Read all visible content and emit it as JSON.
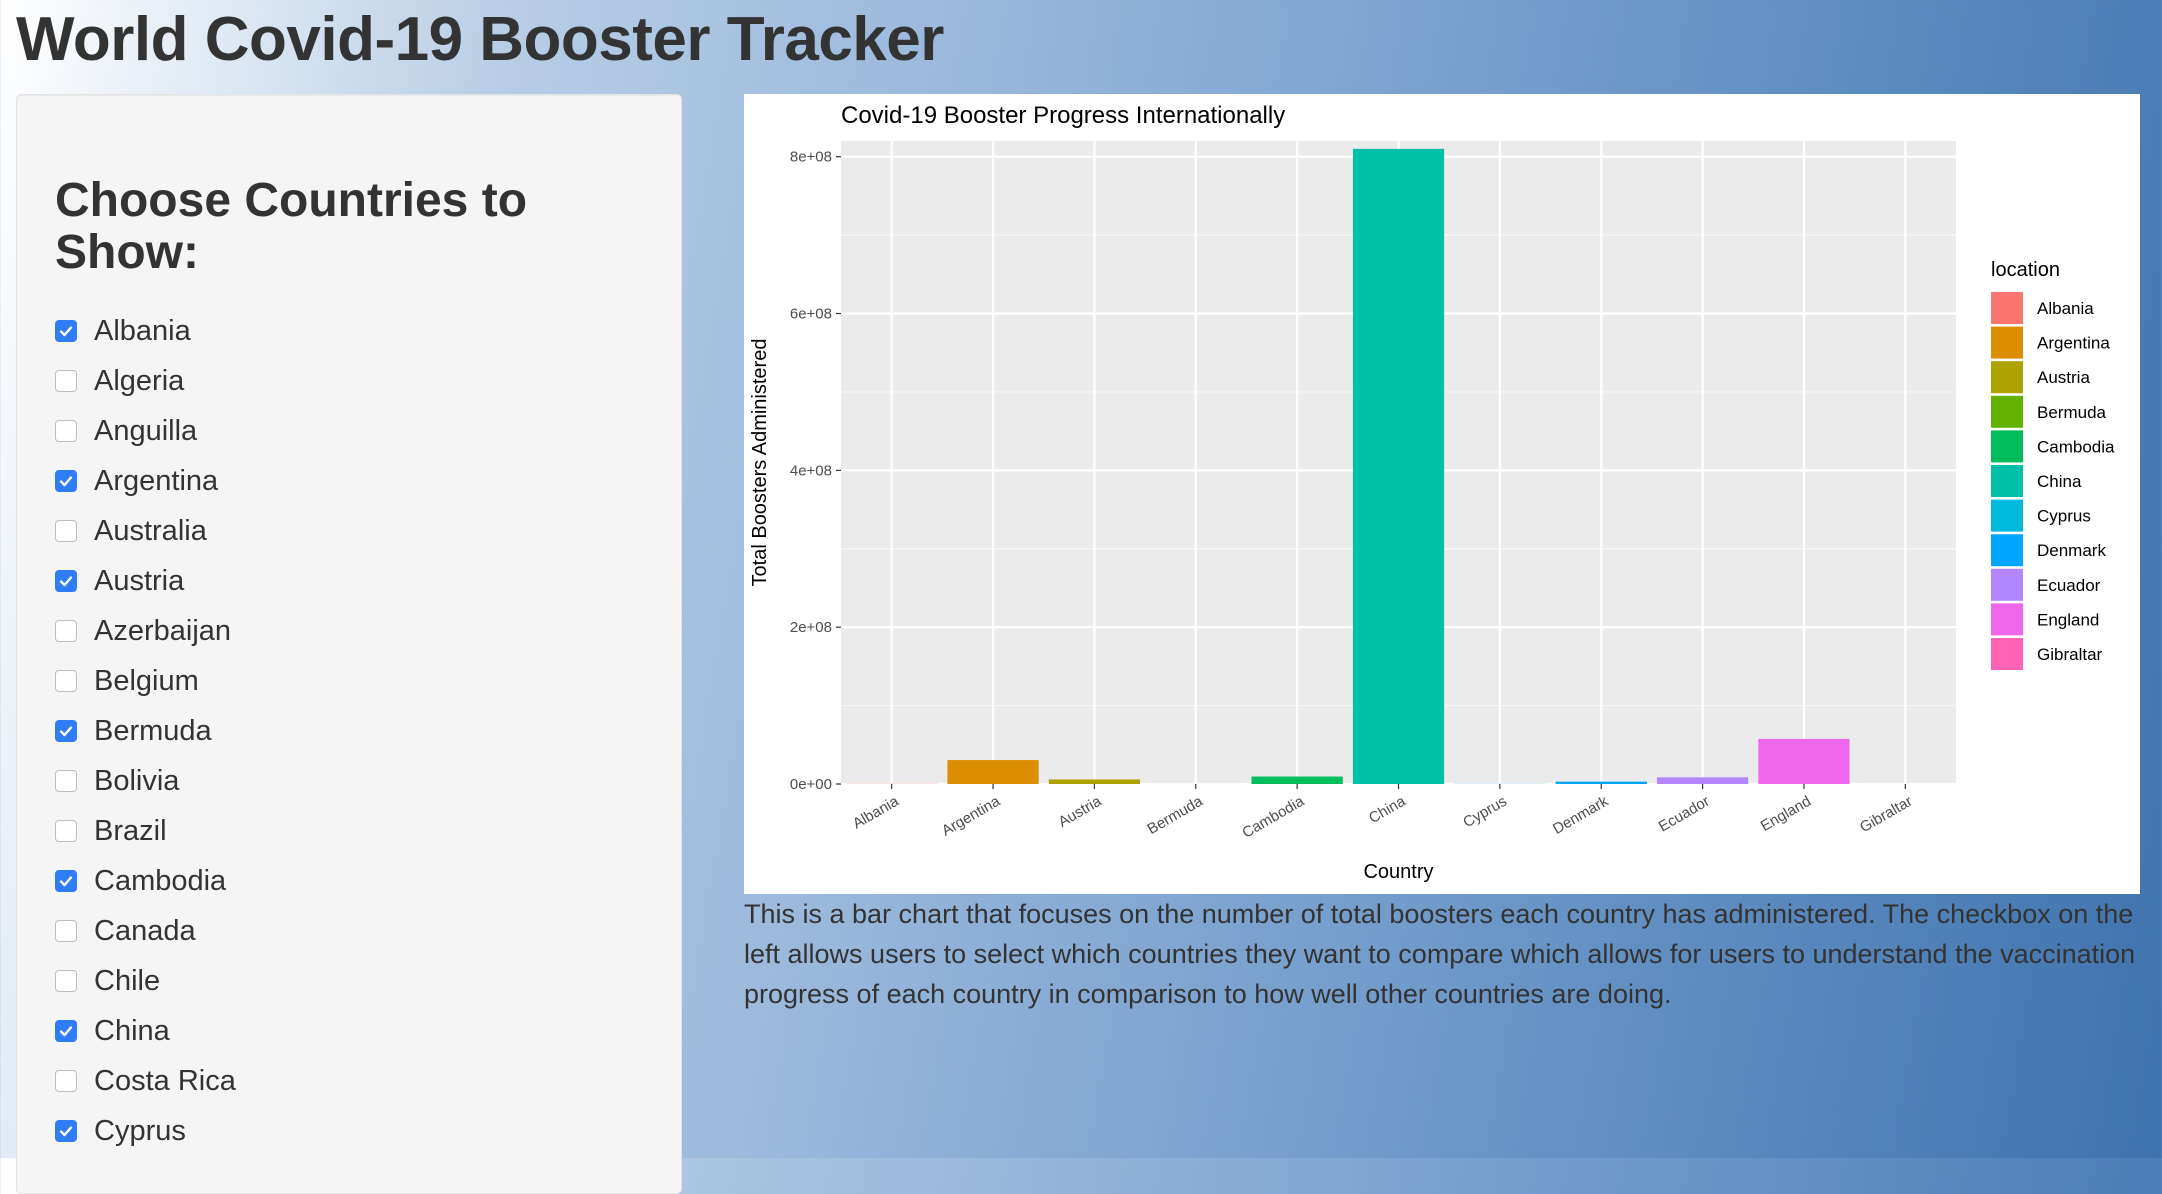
{
  "app": {
    "title": "World Covid-19 Booster Tracker"
  },
  "sidebar": {
    "heading": "Choose Countries to Show:",
    "countries": [
      {
        "label": "Albania",
        "checked": true
      },
      {
        "label": "Algeria",
        "checked": false
      },
      {
        "label": "Anguilla",
        "checked": false
      },
      {
        "label": "Argentina",
        "checked": true
      },
      {
        "label": "Australia",
        "checked": false
      },
      {
        "label": "Austria",
        "checked": true
      },
      {
        "label": "Azerbaijan",
        "checked": false
      },
      {
        "label": "Belgium",
        "checked": false
      },
      {
        "label": "Bermuda",
        "checked": true
      },
      {
        "label": "Bolivia",
        "checked": false
      },
      {
        "label": "Brazil",
        "checked": false
      },
      {
        "label": "Cambodia",
        "checked": true
      },
      {
        "label": "Canada",
        "checked": false
      },
      {
        "label": "Chile",
        "checked": false
      },
      {
        "label": "China",
        "checked": true
      },
      {
        "label": "Costa Rica",
        "checked": false
      },
      {
        "label": "Cyprus",
        "checked": true
      }
    ]
  },
  "description": "This is a bar chart that focuses on the number of total boosters each country has administered. The checkbox on the left allows users to select which countries they want to compare which allows for users to understand the vaccination progress of each country in comparison to how well other countries are doing.",
  "chart_data": {
    "type": "bar",
    "title": "Covid-19 Booster Progress Internationally",
    "xlabel": "Country",
    "ylabel": "Total Boosters Administered",
    "ylim": [
      0,
      820000000
    ],
    "yticks": [
      0,
      200000000,
      400000000,
      600000000,
      800000000
    ],
    "ytick_labels": [
      "0e+00",
      "2e+08",
      "4e+08",
      "6e+08",
      "8e+08"
    ],
    "grid": true,
    "legend_title": "location",
    "legend_position": "right",
    "categories": [
      "Albania",
      "Argentina",
      "Austria",
      "Bermuda",
      "Cambodia",
      "China",
      "Cyprus",
      "Denmark",
      "Ecuador",
      "England",
      "Gibraltar"
    ],
    "values": [
      300000,
      30500000,
      5800000,
      60000,
      9500000,
      810000000,
      200000,
      3000000,
      8500000,
      57500000,
      40000
    ],
    "colors": [
      "#F8766D",
      "#DB8E00",
      "#AEA200",
      "#64B200",
      "#00BD5C",
      "#00C1A7",
      "#00BADE",
      "#00A6FF",
      "#B385FF",
      "#EF67EB",
      "#FF63B6"
    ]
  }
}
